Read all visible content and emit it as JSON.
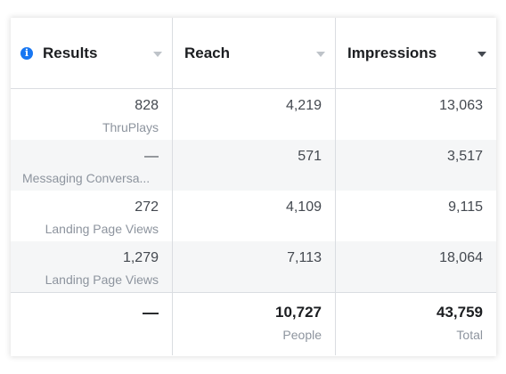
{
  "columns": [
    {
      "label": "Results",
      "icon": "info-icon"
    },
    {
      "label": "Reach"
    },
    {
      "label": "Impressions",
      "sorted": true
    }
  ],
  "rows": [
    {
      "results": "828",
      "result_type": "ThruPlays",
      "reach": "4,219",
      "impressions": "13,063"
    },
    {
      "results": "—",
      "result_type": "Messaging Conversa...",
      "reach": "571",
      "impressions": "3,517"
    },
    {
      "results": "272",
      "result_type": "Landing Page Views",
      "reach": "4,109",
      "impressions": "9,115"
    },
    {
      "results": "1,279",
      "result_type": "Landing Page Views",
      "reach": "7,113",
      "impressions": "18,064"
    }
  ],
  "totals": {
    "results": "—",
    "reach": "10,727",
    "reach_label": "People",
    "impressions": "43,759",
    "impressions_label": "Total"
  },
  "colors": {
    "accent": "#1877f2",
    "text": "#1c1e21",
    "muted": "#8d949e",
    "row_alt": "#f5f6f7",
    "border": "#dadde1"
  }
}
